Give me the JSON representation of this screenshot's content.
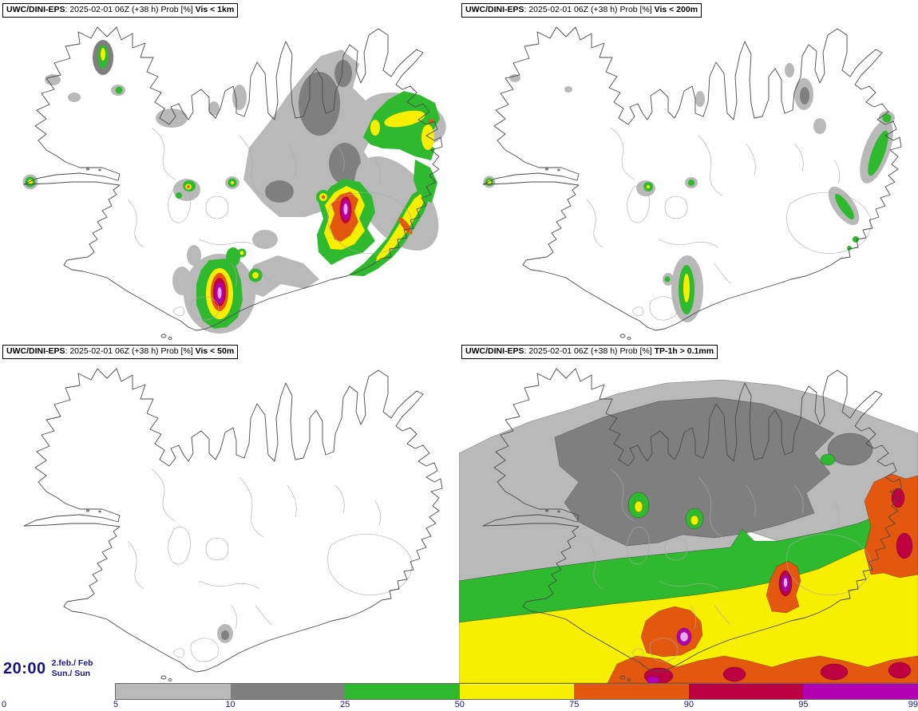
{
  "panels": [
    {
      "model": "UWC/DINI-EPS",
      "meta": ": 2025-02-01 06Z (+38 h) Prob [%] ",
      "param": "Vis < 1km"
    },
    {
      "model": "UWC/DINI-EPS",
      "meta": ": 2025-02-01 06Z (+38 h) Prob [%] ",
      "param": "Vis < 200m"
    },
    {
      "model": "UWC/DINI-EPS",
      "meta": ": 2025-02-01 06Z (+38 h) Prob [%] ",
      "param": "Vis < 50m"
    },
    {
      "model": "UWC/DINI-EPS",
      "meta": ": 2025-02-01 06Z (+38 h) Prob [%] ",
      "param": "TP-1h > 0.1mm"
    }
  ],
  "footer": {
    "valid_time": "20:00",
    "date_top": "2.feb./ Feb",
    "date_bottom": "Sun./ Sun"
  },
  "legend": {
    "tick_labels": [
      "0",
      "5",
      "10",
      "25",
      "50",
      "75",
      "90",
      "95",
      "99"
    ],
    "segments": [
      {
        "range": "5-10",
        "color": "#b9b9b9"
      },
      {
        "range": "10-25",
        "color": "#7f7f7f"
      },
      {
        "range": "25-50",
        "color": "#2fb92f"
      },
      {
        "range": "50-75",
        "color": "#f7ee00"
      },
      {
        "range": "75-90",
        "color": "#e4570f"
      },
      {
        "range": "90-95",
        "color": "#bd0041"
      },
      {
        "range": "95-99",
        "color": "#b000b0"
      }
    ]
  },
  "palette": {
    "grey_light": "#b9b9b9",
    "grey_dark": "#7f7f7f",
    "green": "#2fb92f",
    "yellow": "#f7ee00",
    "red": "#e4570f",
    "crimson": "#bd0041",
    "magenta": "#b000b0",
    "pink": "#eda6ed",
    "coast": "#4a4a4a",
    "contour": "#a8a8a8"
  }
}
